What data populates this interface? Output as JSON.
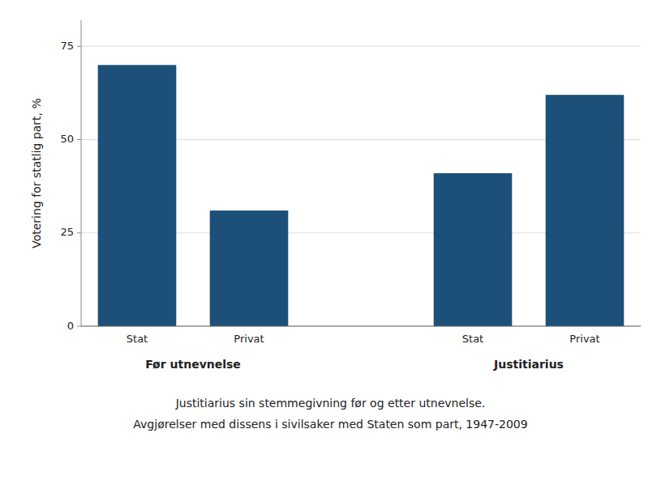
{
  "chart_data": {
    "type": "bar",
    "categories": [
      "Stat",
      "Privat",
      "Stat",
      "Privat"
    ],
    "values": [
      70,
      31,
      41,
      62
    ],
    "groups": [
      "Før utnevnelse",
      "Justitiarius"
    ],
    "color": "#1d5078",
    "ylabel": "Votering for statlig part, %",
    "ylim": [
      0,
      82
    ],
    "yticks": [
      0,
      25,
      50,
      75
    ],
    "grid": true,
    "caption": [
      "Justitiarius sin stemmegivning før og etter utnevnelse.",
      "Avgjørelser med dissens i sivilsaker med Staten som part, 1947-2009"
    ]
  }
}
